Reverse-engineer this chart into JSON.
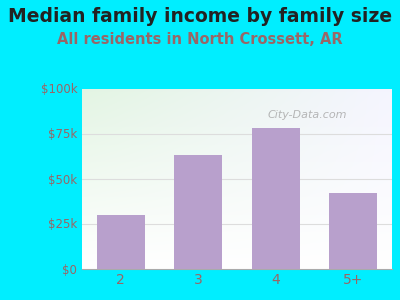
{
  "title": "Median family income by family size",
  "subtitle": "All residents in North Crossett, AR",
  "categories": [
    "2",
    "3",
    "4",
    "5+"
  ],
  "values": [
    30000,
    63000,
    78000,
    42000
  ],
  "bar_color": "#b8a0cc",
  "title_fontsize": 13.5,
  "subtitle_fontsize": 10.5,
  "subtitle_color": "#996666",
  "title_color": "#222222",
  "tick_color": "#996666",
  "ylim": [
    0,
    100000
  ],
  "yticks": [
    0,
    25000,
    50000,
    75000,
    100000
  ],
  "ytick_labels": [
    "$0",
    "$25k",
    "$50k",
    "$75k",
    "$100k"
  ],
  "bg_outer": "#00eeff",
  "watermark": "City-Data.com",
  "grid_color": "#dddddd"
}
